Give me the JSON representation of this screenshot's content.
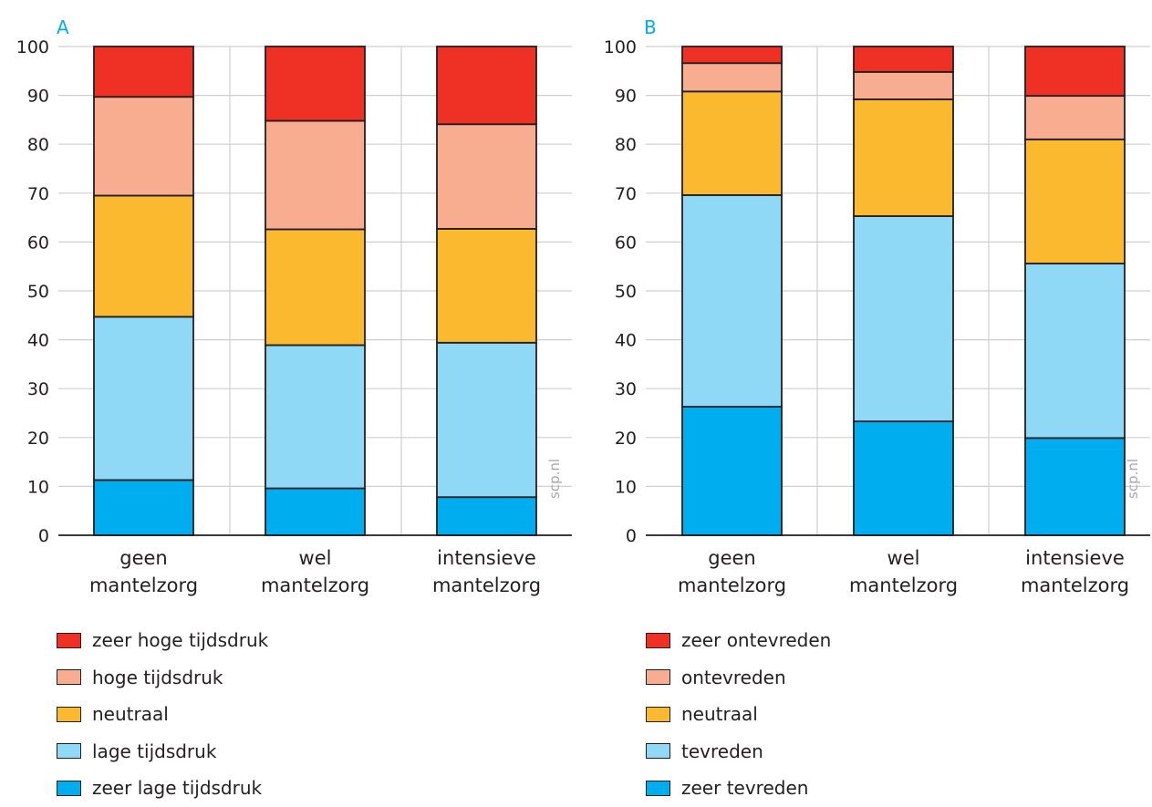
{
  "chart_data": [
    {
      "type": "bar",
      "stacked": true,
      "panel_label": "A",
      "categories": [
        [
          "geen",
          "mantelzorg"
        ],
        [
          "wel",
          "mantelzorg"
        ],
        [
          "intensieve",
          "mantelzorg"
        ]
      ],
      "ylim": [
        0,
        100
      ],
      "yticks": [
        "0",
        "10",
        "20",
        "30",
        "40",
        "50",
        "60",
        "70",
        "80",
        "90",
        "100"
      ],
      "watermark": "scp.nl",
      "grid": true,
      "legend_position": "bottom",
      "series": [
        {
          "name": "zeer lage tijdsdruk",
          "color": "#00aeef",
          "values": [
            11.3,
            9.6,
            7.8
          ]
        },
        {
          "name": "lage tijdsdruk",
          "color": "#8fd8f6",
          "values": [
            33.4,
            29.3,
            31.6
          ]
        },
        {
          "name": "neutraal",
          "color": "#fbb92f",
          "values": [
            24.8,
            23.7,
            23.3
          ]
        },
        {
          "name": "hoge tijdsdruk",
          "color": "#f8ad90",
          "values": [
            20.2,
            22.2,
            21.4
          ]
        },
        {
          "name": "zeer hoge tijdsdruk",
          "color": "#ee3124",
          "values": [
            10.3,
            15.2,
            15.9
          ]
        }
      ]
    },
    {
      "type": "bar",
      "stacked": true,
      "panel_label": "B",
      "categories": [
        [
          "geen",
          "mantelzorg"
        ],
        [
          "wel",
          "mantelzorg"
        ],
        [
          "intensieve",
          "mantelzorg"
        ]
      ],
      "ylim": [
        0,
        100
      ],
      "yticks": [
        "0",
        "10",
        "20",
        "30",
        "40",
        "50",
        "60",
        "70",
        "80",
        "90",
        "100"
      ],
      "watermark": "scp.nl",
      "grid": true,
      "legend_position": "bottom",
      "series": [
        {
          "name": "zeer tevreden",
          "color": "#00aeef",
          "values": [
            26.3,
            23.3,
            19.9
          ]
        },
        {
          "name": "tevreden",
          "color": "#8fd8f6",
          "values": [
            43.3,
            42.0,
            35.7
          ]
        },
        {
          "name": "neutraal",
          "color": "#fbb92f",
          "values": [
            21.2,
            23.9,
            25.4
          ]
        },
        {
          "name": "ontevreden",
          "color": "#f8ad90",
          "values": [
            5.8,
            5.6,
            8.9
          ]
        },
        {
          "name": "zeer ontevreden",
          "color": "#ee3124",
          "values": [
            3.4,
            5.2,
            10.1
          ]
        }
      ]
    }
  ]
}
